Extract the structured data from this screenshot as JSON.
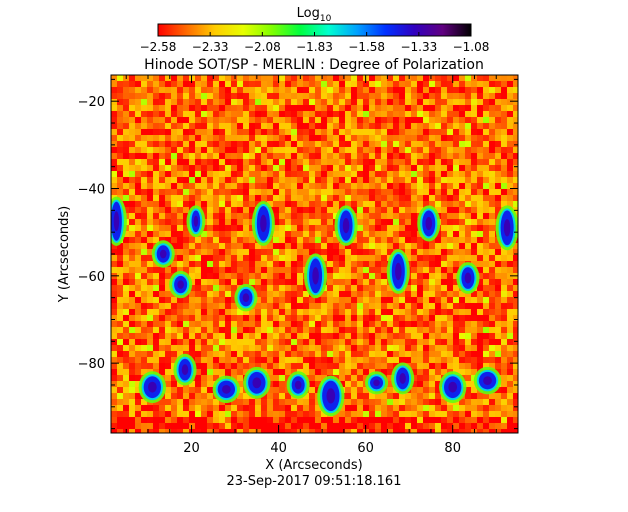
{
  "chart_data": {
    "type": "heatmap",
    "title": "Hinode SOT/SP - MERLIN : Degree of Polarization",
    "colorbar": {
      "label_base": "Log",
      "label_sub": "10",
      "range": [
        -2.58,
        -1.08
      ],
      "ticks": [
        "−2.58",
        "−2.33",
        "−2.08",
        "−1.83",
        "−1.58",
        "−1.33",
        "−1.08"
      ],
      "colormap": [
        "#ff0000",
        "#ff6a00",
        "#ffcc00",
        "#e6ff00",
        "#80ff00",
        "#00ff40",
        "#00ffd0",
        "#00a0ff",
        "#0030ff",
        "#3000c0",
        "#600080",
        "#000000"
      ]
    },
    "x_axis": {
      "label": "X (Arcseconds)",
      "range": [
        1.5,
        95
      ],
      "ticks": [
        20,
        40,
        60,
        80
      ],
      "tick_labels": [
        "20",
        "40",
        "60",
        "80"
      ]
    },
    "y_axis": {
      "label": "Y (Arcseconds)",
      "range": [
        -96,
        -14
      ],
      "ticks": [
        -20,
        -40,
        -60,
        -80
      ],
      "tick_labels": [
        "−20",
        "−40",
        "−60",
        "−80"
      ]
    },
    "field": {
      "background_level": -2.45,
      "features_level": -1.45,
      "strong_feature_regions": [
        {
          "x": [
            1.5,
            4
          ],
          "y": [
            -52,
            -43
          ]
        },
        {
          "x": [
            12,
            15
          ],
          "y": [
            -57,
            -53
          ]
        },
        {
          "x": [
            16,
            19
          ],
          "y": [
            -64,
            -60
          ]
        },
        {
          "x": [
            20,
            22
          ],
          "y": [
            -50,
            -45
          ]
        },
        {
          "x": [
            31,
            34
          ],
          "y": [
            -67,
            -63
          ]
        },
        {
          "x": [
            35,
            38
          ],
          "y": [
            -52,
            -44
          ]
        },
        {
          "x": [
            47,
            50
          ],
          "y": [
            -64,
            -56
          ]
        },
        {
          "x": [
            54,
            57
          ],
          "y": [
            -52,
            -45
          ]
        },
        {
          "x": [
            66,
            69
          ],
          "y": [
            -63,
            -55
          ]
        },
        {
          "x": [
            73,
            76
          ],
          "y": [
            -51,
            -45
          ]
        },
        {
          "x": [
            82,
            85
          ],
          "y": [
            -63,
            -58
          ]
        },
        {
          "x": [
            91,
            94
          ],
          "y": [
            -53,
            -45
          ]
        },
        {
          "x": [
            9,
            13
          ],
          "y": [
            -88,
            -83
          ]
        },
        {
          "x": [
            17,
            20
          ],
          "y": [
            -84,
            -79
          ]
        },
        {
          "x": [
            26,
            30
          ],
          "y": [
            -88,
            -84
          ]
        },
        {
          "x": [
            33,
            37
          ],
          "y": [
            -87,
            -82
          ]
        },
        {
          "x": [
            43,
            46
          ],
          "y": [
            -87,
            -83
          ]
        },
        {
          "x": [
            50,
            54
          ],
          "y": [
            -91,
            -84
          ]
        },
        {
          "x": [
            61,
            64
          ],
          "y": [
            -86,
            -83
          ]
        },
        {
          "x": [
            67,
            70
          ],
          "y": [
            -86,
            -81
          ]
        },
        {
          "x": [
            78,
            82
          ],
          "y": [
            -88,
            -83
          ]
        },
        {
          "x": [
            86,
            90
          ],
          "y": [
            -86,
            -82
          ]
        }
      ]
    },
    "timestamp": "23-Sep-2017 09:51:18.161"
  }
}
